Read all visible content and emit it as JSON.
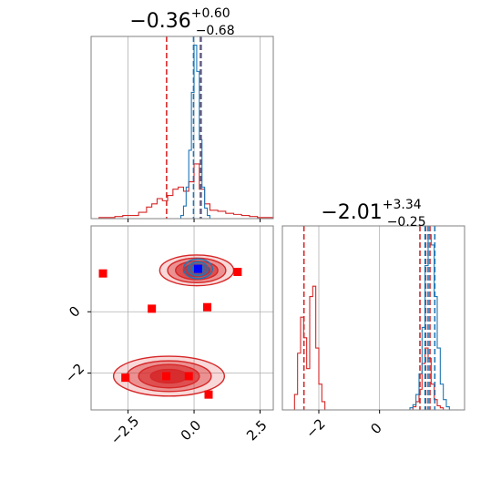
{
  "chart_data": {
    "type": "corner",
    "colors": {
      "blue": "#1f77b4",
      "red": "#d62728",
      "pure_blue": "#0000ff",
      "pure_red": "#ff0000",
      "frame": "#808080",
      "grid": "#b0b0b0"
    },
    "panels": [
      {
        "id": "hist_p1",
        "type": "histogram",
        "title_main": "−0.36",
        "title_sup": "+0.60",
        "title_sub": "−0.68",
        "xlim": [
          -3.9,
          3.0
        ],
        "xticks": [
          -2.5,
          0.0,
          2.5
        ],
        "grid": true,
        "series": [
          {
            "name": "",
            "color": "#d62728",
            "bins": [
              -3.9,
              -3.6,
              -3.3,
              -3.0,
              -2.7,
              -2.4,
              -2.1,
              -1.8,
              -1.6,
              -1.4,
              -1.2,
              -1.0,
              -0.8,
              -0.6,
              -0.4,
              -0.2,
              0.0,
              0.2,
              0.4,
              0.6,
              0.9,
              1.2,
              1.5,
              1.8,
              2.1,
              2.4,
              2.7,
              3.0
            ],
            "counts": [
              0,
              1,
              1,
              2,
              3,
              3,
              6,
              11,
              14,
              19,
              17,
              22,
              28,
              30,
              26,
              35,
              52,
              28,
              14,
              8,
              7,
              5,
              4,
              3,
              2,
              1,
              1
            ]
          },
          {
            "name": "",
            "color": "#1f77b4",
            "bins": [
              -0.5,
              -0.4,
              -0.3,
              -0.2,
              -0.1,
              0.0,
              0.1,
              0.2,
              0.3,
              0.4,
              0.5,
              0.6
            ],
            "counts": [
              3,
              12,
              30,
              65,
              120,
              165,
              140,
              75,
              30,
              10,
              3
            ]
          }
        ],
        "vlines": [
          {
            "x": -1.04,
            "color": "#d62728"
          },
          {
            "x": 0.24,
            "color": "#d62728"
          },
          {
            "x": -0.02,
            "color": "#1f77b4"
          },
          {
            "x": 0.27,
            "color": "#1f77b4"
          }
        ]
      },
      {
        "id": "hist_p2",
        "type": "histogram",
        "title_main": "−2.01",
        "title_sup": "+3.34",
        "title_sub": "−0.25",
        "xlim": [
          -3.2,
          2.8
        ],
        "xticks": [
          -2,
          0
        ],
        "grid": true,
        "series": [
          {
            "name": "",
            "color": "#d62728",
            "bins": [
              -2.8,
              -2.7,
              -2.6,
              -2.5,
              -2.4,
              -2.3,
              -2.2,
              -2.1,
              -2.0,
              -1.9,
              -1.8
            ],
            "counts": [
              15,
              55,
              90,
              70,
              40,
              110,
              120,
              60,
              25,
              8
            ]
          },
          {
            "name": "",
            "color": "#d62728",
            "bins": [
              1.1,
              1.2,
              1.3,
              1.4,
              1.5,
              1.6,
              1.7,
              1.8,
              1.9,
              2.0,
              2.1
            ],
            "counts": [
              3,
              8,
              20,
              45,
              60,
              50,
              25,
              10,
              4,
              2
            ]
          },
          {
            "name": "",
            "color": "#1f77b4",
            "bins": [
              1.0,
              1.1,
              1.2,
              1.3,
              1.4,
              1.5,
              1.6,
              1.7,
              1.8,
              1.9,
              2.0,
              2.1,
              2.2,
              2.3
            ],
            "counts": [
              2,
              5,
              15,
              35,
              80,
              140,
              170,
              160,
              110,
              60,
              25,
              10,
              3
            ]
          }
        ],
        "vlines": [
          {
            "x": -2.49,
            "color": "#d62728"
          },
          {
            "x": 1.33,
            "color": "#d62728"
          },
          {
            "x": 1.52,
            "color": "#d62728"
          },
          {
            "x": 1.66,
            "color": "#d62728"
          },
          {
            "x": 1.5,
            "color": "#1f77b4"
          },
          {
            "x": 1.6,
            "color": "#1f77b4"
          },
          {
            "x": 1.82,
            "color": "#1f77b4"
          }
        ]
      },
      {
        "id": "joint",
        "type": "contour",
        "xlim": [
          -3.9,
          3.0
        ],
        "ylim": [
          -3.2,
          2.8
        ],
        "xticks": [
          -2.5,
          0.0,
          2.5
        ],
        "yticks": [
          -2,
          0
        ],
        "grid": true,
        "blobs": [
          {
            "color": "#d62728",
            "cx": 0.1,
            "cy": 1.35,
            "rx": [
              1.4,
              1.1,
              0.8,
              0.5
            ],
            "ry": [
              0.5,
              0.4,
              0.3,
              0.2
            ]
          },
          {
            "color": "#1f77b4",
            "cx": 0.15,
            "cy": 1.4,
            "rx": [
              0.55,
              0.38,
              0.22
            ],
            "ry": [
              0.32,
              0.22,
              0.12
            ]
          },
          {
            "color": "#d62728",
            "cx": -0.95,
            "cy": -2.1,
            "rx": [
              2.1,
              1.6,
              1.15,
              0.7
            ],
            "ry": [
              0.65,
              0.5,
              0.38,
              0.22
            ]
          }
        ],
        "points": [
          {
            "x": 0.15,
            "y": 1.4,
            "color": "#0000ff"
          },
          {
            "x": -3.45,
            "y": 1.25,
            "color": "#ff0000"
          },
          {
            "x": 1.65,
            "y": 1.3,
            "color": "#ff0000"
          },
          {
            "x": -1.6,
            "y": 0.1,
            "color": "#ff0000"
          },
          {
            "x": 0.5,
            "y": 0.15,
            "color": "#ff0000"
          },
          {
            "x": -2.6,
            "y": -2.15,
            "color": "#ff0000"
          },
          {
            "x": -1.05,
            "y": -2.1,
            "color": "#ff0000"
          },
          {
            "x": -0.2,
            "y": -2.1,
            "color": "#ff0000"
          },
          {
            "x": 0.55,
            "y": -2.7,
            "color": "#ff0000"
          }
        ]
      }
    ]
  }
}
